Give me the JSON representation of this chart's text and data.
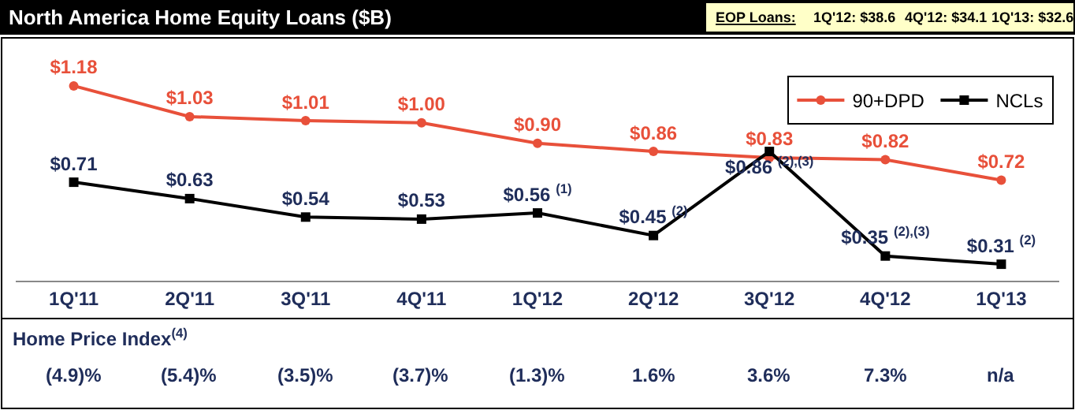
{
  "chart_data": {
    "type": "line",
    "title": "North America Home Equity Loans ($B)",
    "categories": [
      "1Q'11",
      "2Q'11",
      "3Q'11",
      "4Q'11",
      "1Q'12",
      "2Q'12",
      "3Q'12",
      "4Q'12",
      "1Q'13"
    ],
    "series": [
      {
        "name": "90+DPD",
        "color": "#e8503a",
        "marker": "circle",
        "values": [
          1.18,
          1.03,
          1.01,
          1.0,
          0.9,
          0.86,
          0.83,
          0.82,
          0.72
        ],
        "value_labels": [
          "$1.18",
          "$1.03",
          "$1.01",
          "$1.00",
          "$0.90",
          "$0.86",
          "$0.83",
          "$0.82",
          "$0.72"
        ]
      },
      {
        "name": "NCLs",
        "color": "#000000",
        "marker": "square",
        "values": [
          0.71,
          0.63,
          0.54,
          0.53,
          0.56,
          0.45,
          0.86,
          0.35,
          0.31
        ],
        "value_labels": [
          "$0.71",
          "$0.63",
          "$0.54",
          "$0.53",
          "$0.56 $^{(1)}$",
          "$0.45 $^{(2)}$",
          "$0.86 $^{(2),(3)}$",
          "$0.35 $^{(2),(3)}$",
          "$0.31 $^{(2)}$"
        ]
      }
    ],
    "legend": "top right",
    "grid": false,
    "tick_labels": "x",
    "line_style": "solid",
    "annotations": [
      "EOP Loans:",
      "1Q'12: $38.6",
      "4Q'12: $34.1",
      "1Q'13: $32.6",
      "Home Price Index$^{(4)}$",
      "(4.9)%",
      "(5.4)%",
      "(3.5)%",
      "(3.7)%",
      "(1.3)%",
      "1.6%",
      "3.6%",
      "7.3%",
      "n/a"
    ]
  }
}
